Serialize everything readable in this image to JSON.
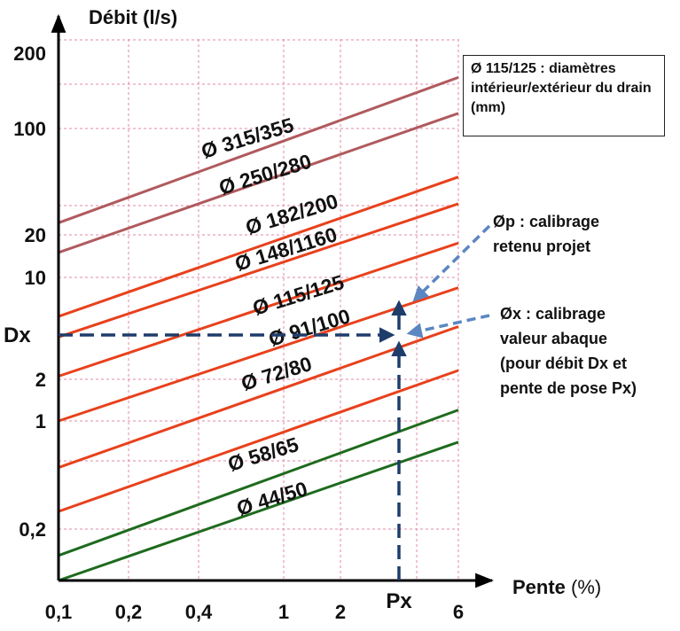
{
  "chart_data": {
    "type": "line",
    "title": "",
    "ylabel": "Débit (l/s)",
    "xlabel_main": "Pente",
    "xlabel_unit": "(%)",
    "x_scale": "log",
    "y_scale": "log",
    "xlim": [
      0.1,
      6
    ],
    "ylim": [
      0.1,
      200
    ],
    "x_ticks": [
      {
        "value": 0.1,
        "label": "0,1"
      },
      {
        "value": 0.2,
        "label": "0,2"
      },
      {
        "value": 0.4,
        "label": "0,4"
      },
      {
        "value": 1,
        "label": "1"
      },
      {
        "value": 2,
        "label": "2"
      },
      {
        "value": 6,
        "label": "6"
      }
    ],
    "y_ticks": [
      {
        "value": 0.2,
        "label": "0,2"
      },
      {
        "value": 1,
        "label": "1"
      },
      {
        "value": 2,
        "label": "2"
      },
      {
        "value": 10,
        "label": "10"
      },
      {
        "value": 20,
        "label": "20"
      },
      {
        "value": 100,
        "label": "100"
      },
      {
        "value": 200,
        "label": "200"
      }
    ],
    "grid": true,
    "series": [
      {
        "name": "Ø 315/355",
        "color": "#b05a5e",
        "x": [
          0.1,
          6
        ],
        "y": [
          24,
          160
        ]
      },
      {
        "name": "Ø 250/280",
        "color": "#b05a5e",
        "x": [
          0.1,
          6
        ],
        "y": [
          15,
          115
        ]
      },
      {
        "name": "Ø 182/200",
        "color": "#e8411c",
        "x": [
          0.1,
          6
        ],
        "y": [
          5.4,
          48
        ]
      },
      {
        "name": "Ø 148/1160",
        "color": "#e8411c",
        "x": [
          0.1,
          6
        ],
        "y": [
          3.9,
          32
        ]
      },
      {
        "name": "Ø 115/125",
        "color": "#e8411c",
        "x": [
          0.1,
          6
        ],
        "y": [
          2.1,
          17.5
        ]
      },
      {
        "name": "Ø 91/100",
        "color": "#e8411c",
        "x": [
          0.1,
          6
        ],
        "y": [
          1.0,
          8.5
        ]
      },
      {
        "name": "Ø 72/80",
        "color": "#e8411c",
        "x": [
          0.1,
          6
        ],
        "y": [
          0.5,
          4.6
        ]
      },
      {
        "name": "Ø 58/65",
        "color": "#e8411c",
        "x": [
          0.1,
          6
        ],
        "y": [
          0.26,
          2.3
        ]
      },
      {
        "name": "Ø 44/50",
        "color": "#1e6b1e",
        "x": [
          0.1,
          6
        ],
        "y": [
          0.14,
          1.2
        ]
      },
      {
        "name": "",
        "color": "#1e6b1e",
        "x": [
          0.1,
          6
        ],
        "y": [
          0.1,
          0.73
        ]
      }
    ],
    "label_positions_note": "",
    "annotations": {
      "dx_label": "Dx",
      "px_label": "Px",
      "dx_value": 5.2,
      "px_value": 3.8,
      "legend_note": "Ø 115/125 : diamètres intérieur/extérieur du drain (mm)",
      "callout_p": "Øp : calibrage\nretenu projet",
      "callout_x": "Øx : calibrage\nvaleur  abaque\n(pour débit Dx et\npente de pose Px)"
    }
  }
}
